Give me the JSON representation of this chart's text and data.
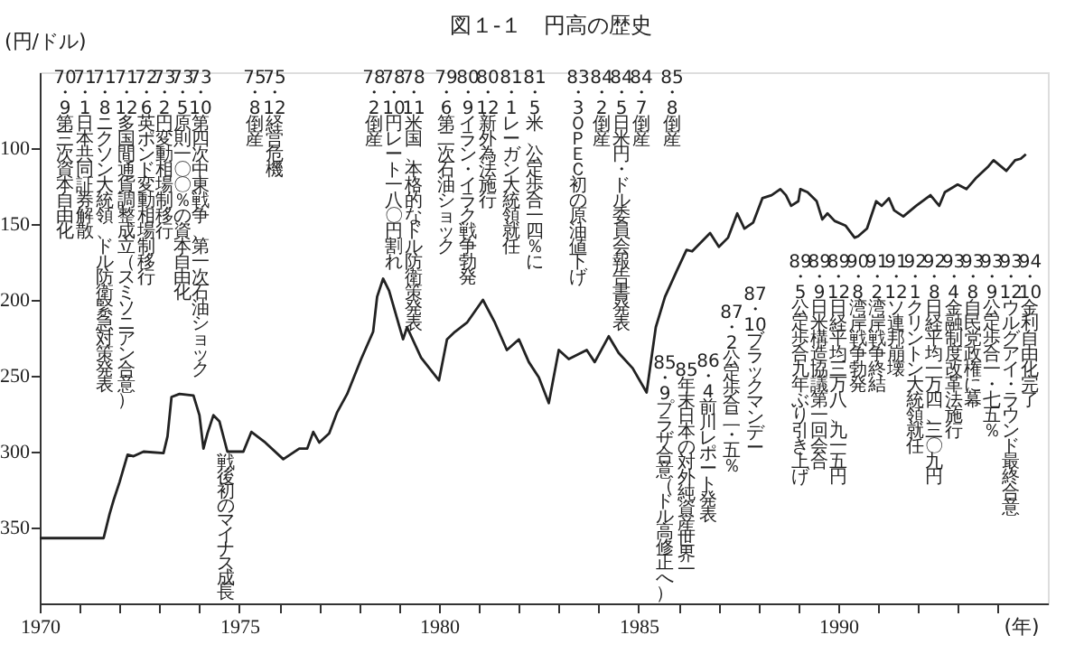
{
  "chart_data": {
    "type": "line",
    "title": "図１-１　円高の歴史",
    "ylabel": "(円/ドル)",
    "xlabel": "(年)",
    "x": [
      1970.0,
      1971.6,
      1971.75,
      1971.85,
      1972.0,
      1972.2,
      1972.35,
      1972.6,
      1973.1,
      1973.2,
      1973.3,
      1973.5,
      1973.85,
      1974.0,
      1974.1,
      1974.2,
      1974.35,
      1974.5,
      1974.7,
      1974.9,
      1975.1,
      1975.3,
      1975.65,
      1976.1,
      1976.5,
      1976.7,
      1976.85,
      1977.0,
      1977.25,
      1977.45,
      1977.7,
      1978.05,
      1978.35,
      1978.45,
      1978.6,
      1978.75,
      1979.1,
      1979.2,
      1979.55,
      1980.0,
      1980.2,
      1980.4,
      1980.7,
      1981.1,
      1981.4,
      1981.7,
      1982.0,
      1982.25,
      1982.5,
      1982.75,
      1983.0,
      1983.25,
      1983.7,
      1983.9,
      1984.25,
      1984.5,
      1984.85,
      1985.2,
      1985.43,
      1985.66,
      1985.97,
      1986.2,
      1986.34,
      1986.79,
      1987.01,
      1987.24,
      1987.47,
      1987.65,
      1987.87,
      1988.1,
      1988.33,
      1988.55,
      1988.69,
      1988.82,
      1989.0,
      1989.05,
      1989.23,
      1989.46,
      1989.6,
      1989.73,
      1989.91,
      1990.18,
      1990.41,
      1990.5,
      1990.72,
      1990.95,
      1991.09,
      1991.27,
      1991.4,
      1991.63,
      1991.95,
      1992.31,
      1992.53,
      1992.67,
      1992.99,
      1993.21,
      1993.44,
      1993.76,
      1993.89,
      1994.21,
      1994.43,
      1994.57,
      1994.7
    ],
    "series": [
      {
        "color": "#222222",
        "values": [
          357,
          357,
          341,
          332,
          320,
          302,
          303,
          300,
          301,
          290,
          264,
          262,
          263,
          276,
          298,
          288,
          276,
          280,
          300,
          300,
          300,
          287,
          294,
          305,
          298,
          298,
          287,
          294,
          288,
          274,
          262,
          239,
          221,
          198,
          186,
          194,
          226,
          218,
          238,
          253,
          226,
          221,
          215,
          200,
          215,
          233,
          226,
          241,
          251,
          268,
          233,
          239,
          233,
          241,
          224,
          235,
          245,
          261,
          218,
          198,
          180,
          167,
          168,
          156,
          165,
          159,
          143,
          153,
          149,
          133,
          131,
          127,
          131,
          138,
          135,
          127,
          129,
          135,
          147,
          143,
          148,
          151,
          159,
          158,
          153,
          135,
          138,
          133,
          141,
          145,
          138,
          131,
          138,
          129,
          124,
          127,
          120,
          112,
          108,
          115,
          108,
          107,
          104
        ]
      }
    ],
    "xlim": [
      1970,
      1995.25
    ],
    "ylim": [
      400,
      50
    ],
    "xticks": [
      1970,
      {
        "value": 1971,
        "label": null
      },
      {
        "value": 1972,
        "label": null
      },
      {
        "value": 1973,
        "label": null
      },
      {
        "value": 1974,
        "label": null
      },
      1975,
      {
        "value": 1976,
        "label": null
      },
      {
        "value": 1977,
        "label": null
      },
      {
        "value": 1978,
        "label": null
      },
      {
        "value": 1979,
        "label": null
      },
      1980,
      {
        "value": 1981,
        "label": null
      },
      {
        "value": 1982,
        "label": null
      },
      {
        "value": 1983,
        "label": null
      },
      {
        "value": 1984,
        "label": null
      },
      1985,
      {
        "value": 1986,
        "label": null
      },
      {
        "value": 1987,
        "label": null
      },
      {
        "value": 1988,
        "label": null
      },
      {
        "value": 1989,
        "label": null
      },
      1990,
      {
        "value": 1991,
        "label": null
      },
      {
        "value": 1992,
        "label": null
      },
      {
        "value": 1993,
        "label": null
      },
      {
        "value": 1994,
        "label": null
      }
    ],
    "yticks": [
      100,
      150,
      200,
      250,
      300,
      350
    ],
    "grid": false,
    "marker": "none",
    "line_style": "solid",
    "annotations": [
      "70・9",
      "第三次資本自由化",
      "71・1",
      "日本共同証券解散",
      "71・8",
      "ニクソン大統領、ドル防衛緊急対策発表",
      "71・12",
      "多国間通貨調整成立（スミソニアン合意）",
      "72・6",
      "英ポンド変動相場制移行",
      "73・2",
      "円変動相場制移行",
      "73・5",
      "原則一〇〇％の資本自由化",
      "73・10",
      "第四次中東戦争、第一次石油ショック",
      "75・8",
      "倒産",
      "75・12",
      "経営危機",
      "78・2",
      "倒産",
      "78・10",
      "円レート一八〇円割れ",
      "78・11",
      "米国、本格的なドル防衛策発表",
      "79・6",
      "第二次石油ショック",
      "80・9",
      "イラン・イラク戦争勃発",
      "80・12",
      "新外為法施行",
      "81・1",
      "レーガン大統領就任",
      "81・5",
      "米、公定歩合一四％に",
      "83・3",
      "ＯＰＥＣ初の原油値下げ",
      "84・2",
      "倒産",
      "84・5",
      "日米円・ドル委員会報告書発表",
      "84・7",
      "倒産",
      "85・8",
      "倒産",
      "戦後初のマイナス成長",
      "85・9",
      "プラザ合意（ドル高修正へ）",
      "85年末",
      "日本の対外純資産世界一",
      "86・4",
      "前川レポート発表",
      "87・2",
      "公定歩合二・五％",
      "87・10",
      "ブラックマンデー",
      "89・5",
      "公定歩合九年ぶり引き上げ",
      "89・9",
      "日米構造協議第一回会合",
      "89・12",
      "日経平均三万八、九一五円",
      "90・8",
      "湾岸戦争勃発",
      "91・2",
      "湾岸戦争終結",
      "91・12",
      "ソ連邦崩壊",
      "92・1",
      "クリントン大統領就任",
      "92・8",
      "日経平均一万四、三〇九円",
      "93・4",
      "金融制度改革法施行",
      "93・8",
      "自民党政権に幕",
      "93・9",
      "公定歩合一・七五％",
      "93・12",
      "ウルグアイ・ラウンド最終合意",
      "94・10",
      "金利自由化完了"
    ]
  }
}
